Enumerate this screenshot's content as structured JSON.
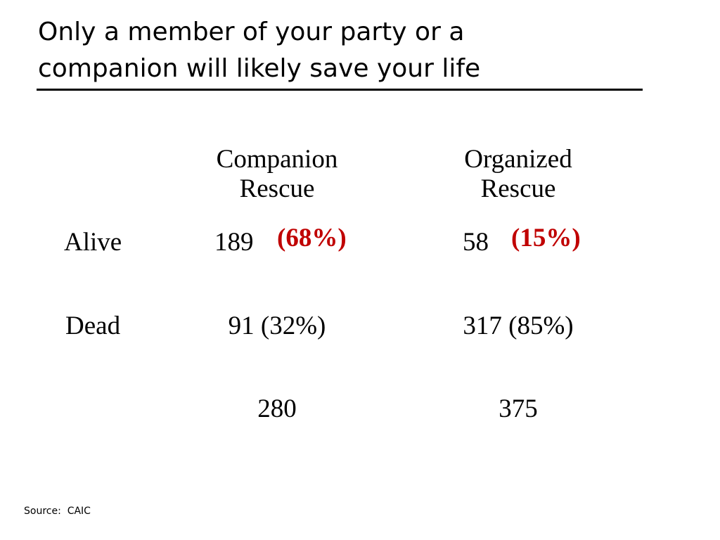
{
  "title": {
    "line1": "Only a member of your party or a",
    "line2": "companion will likely save your life"
  },
  "table": {
    "columns": {
      "companion": {
        "line1": "Companion",
        "line2": "Rescue"
      },
      "organized": {
        "line1": "Organized",
        "line2": "Rescue"
      }
    },
    "rows": {
      "alive": {
        "label": "Alive",
        "companion_count": "189",
        "companion_pct": "(68%)",
        "organized_count": "58",
        "organized_pct": "(15%)"
      },
      "dead": {
        "label": "Dead",
        "companion": "91 (32%)",
        "organized": "317 (85%)"
      }
    },
    "totals": {
      "companion": "280",
      "organized": "375"
    }
  },
  "source": "Source:  CAIC",
  "colors": {
    "highlight": "#c00000",
    "text": "#000000",
    "background": "#ffffff"
  }
}
